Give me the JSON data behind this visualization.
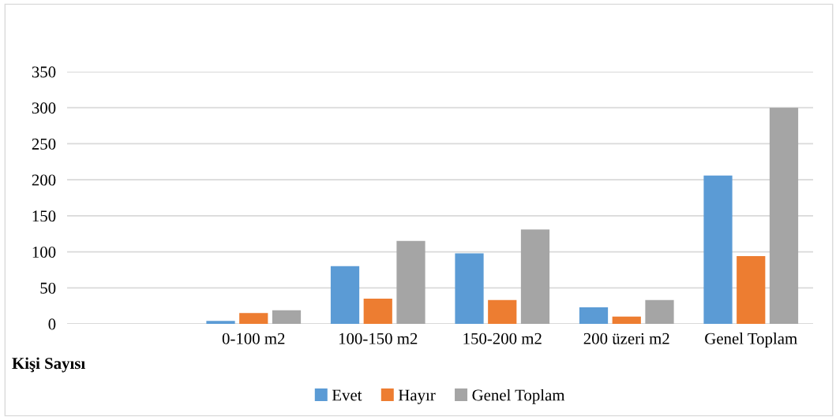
{
  "chart_data": {
    "type": "bar",
    "categories": [
      null,
      "0-100 m2",
      "100-150 m2",
      "150-200 m2",
      "200 üzeri m2",
      "Genel Toplam"
    ],
    "series": [
      {
        "name": "Evet",
        "color": "#5b9bd5",
        "values": [
          null,
          4,
          80,
          98,
          23,
          206
        ]
      },
      {
        "name": "Hayır",
        "color": "#ed7d31",
        "values": [
          null,
          15,
          35,
          33,
          10,
          94
        ]
      },
      {
        "name": "Genel Toplam",
        "color": "#a5a5a5",
        "values": [
          null,
          19,
          115,
          131,
          33,
          300
        ]
      }
    ],
    "ylim": [
      0,
      350
    ],
    "yticks": [
      0,
      50,
      100,
      150,
      200,
      250,
      300,
      350
    ],
    "grid": "y",
    "legend": "bottom",
    "annotations": [
      "Kişi Sayısı"
    ]
  }
}
